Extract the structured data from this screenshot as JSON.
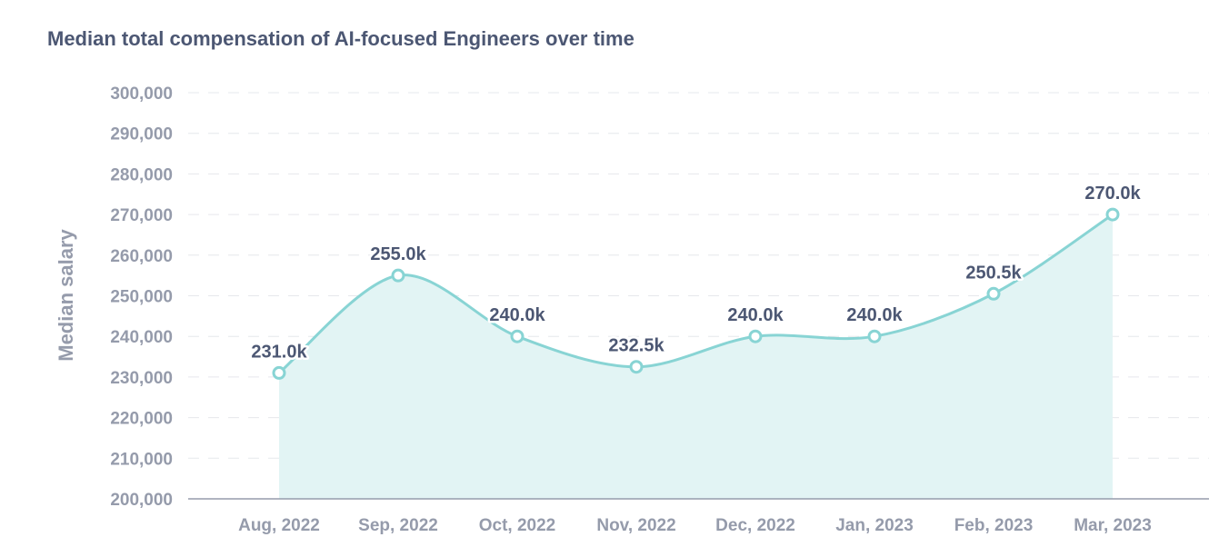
{
  "chart_data": {
    "type": "area",
    "title": "Median total compensation of AI-focused Engineers over time",
    "xlabel": "",
    "ylabel": "Median salary",
    "categories": [
      "Aug, 2022",
      "Sep, 2022",
      "Oct, 2022",
      "Nov, 2022",
      "Dec, 2022",
      "Jan, 2023",
      "Feb, 2023",
      "Mar, 2023"
    ],
    "values": [
      231000,
      255000,
      240000,
      232500,
      240000,
      240000,
      250500,
      270000
    ],
    "data_labels": [
      "231.0k",
      "255.0k",
      "240.0k",
      "232.5k",
      "240.0k",
      "240.0k",
      "250.5k",
      "270.0k"
    ],
    "ylim": [
      200000,
      300000
    ],
    "yticks": [
      200000,
      210000,
      220000,
      230000,
      240000,
      250000,
      260000,
      270000,
      280000,
      290000,
      300000
    ],
    "ytick_labels": [
      "200,000",
      "210,000",
      "220,000",
      "230,000",
      "240,000",
      "250,000",
      "260,000",
      "270,000",
      "280,000",
      "290,000",
      "300,000"
    ],
    "grid": "horizontal dashed",
    "colors": {
      "line": "#88d4d4",
      "fill": "#e2f4f4",
      "text": "#4c5773",
      "axis": "#959bab"
    }
  }
}
